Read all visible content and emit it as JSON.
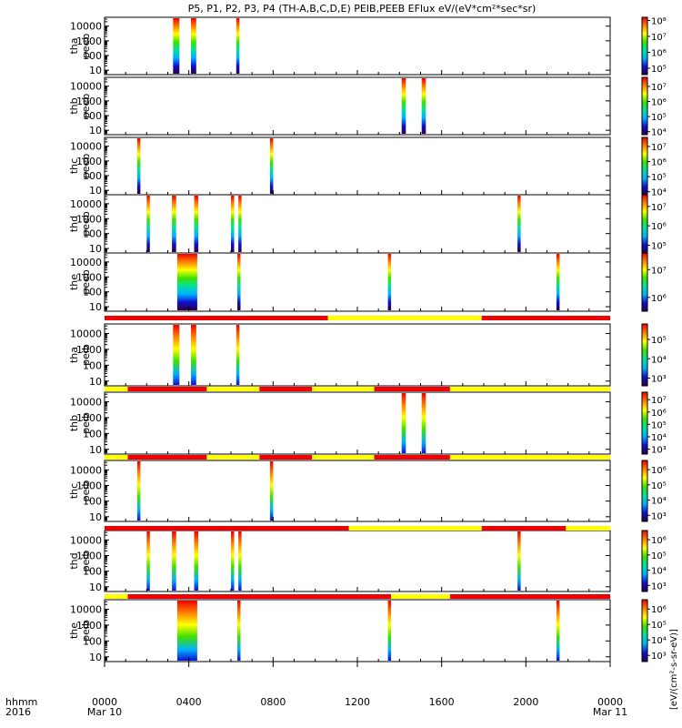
{
  "title": "P5, P1, P2, P3, P4 (TH-A,B,C,D,E) PEIB,PEEB EFlux eV/(eV*cm²*sec*sr)",
  "time_axis": {
    "row_label_1": "hhmm",
    "row_label_2": "2016",
    "ticks": [
      {
        "time": "0000",
        "date": "Mar 10",
        "hour": 0
      },
      {
        "time": "0400",
        "date": "",
        "hour": 4
      },
      {
        "time": "0800",
        "date": "",
        "hour": 8
      },
      {
        "time": "1200",
        "date": "",
        "hour": 12
      },
      {
        "time": "1600",
        "date": "",
        "hour": 16
      },
      {
        "time": "2000",
        "date": "",
        "hour": 20
      },
      {
        "time": "0000",
        "date": "Mar 11",
        "hour": 24
      }
    ]
  },
  "colorbar_label": "[eV/(cm²-s-sr-eV)]",
  "colors": {
    "bar_red": "#ee0000",
    "bar_yellow": "#ffff00",
    "colormap": [
      "#2a0040",
      "#1010d0",
      "#00b0ff",
      "#00e0a0",
      "#40e000",
      "#ffff00",
      "#ff8000",
      "#ee0000"
    ]
  },
  "chart_data": {
    "type": "heatmap",
    "x_unit": "hour of day, 2016 Mar 10 UT",
    "xlim": [
      0,
      24
    ],
    "y_scale": "log",
    "y_ticks": [
      "10",
      "100",
      "1000",
      "10000"
    ],
    "ylim": [
      5,
      40000
    ],
    "panels": [
      {
        "label1": "tha",
        "label2": "peeb",
        "cbar": {
          "labels": [
            "10⁵",
            "10⁶",
            "10⁷",
            "10⁸"
          ],
          "min": 4.6,
          "max": 8.2
        },
        "intervals": [
          [
            3.25,
            3.55
          ],
          [
            4.1,
            4.35
          ],
          [
            6.25,
            6.4
          ]
        ]
      },
      {
        "label1": "thb",
        "label2": "peeb",
        "cbar": {
          "labels": [
            "10⁴",
            "10⁵",
            "10⁶",
            "10⁷"
          ],
          "min": 3.8,
          "max": 7.6
        },
        "intervals": [
          [
            14.1,
            14.3
          ],
          [
            15.05,
            15.25
          ]
        ]
      },
      {
        "label1": "thc",
        "label2": "peeb",
        "cbar": {
          "labels": [
            "10⁴",
            "10⁵",
            "10⁶",
            "10⁷"
          ],
          "min": 3.8,
          "max": 7.6
        },
        "intervals": [
          [
            1.55,
            1.7
          ],
          [
            7.85,
            8.0
          ]
        ]
      },
      {
        "label1": "thd",
        "label2": "peeb",
        "cbar": {
          "labels": [
            "10⁵",
            "10⁶",
            "10⁷"
          ],
          "min": 4.6,
          "max": 7.6
        },
        "intervals": [
          [
            2.0,
            2.15
          ],
          [
            3.2,
            3.4
          ],
          [
            4.25,
            4.45
          ],
          [
            6.0,
            6.15
          ],
          [
            6.35,
            6.5
          ],
          [
            19.6,
            19.75
          ]
        ]
      },
      {
        "label1": "the",
        "label2": "peeb",
        "cbar": {
          "labels": [
            "10⁶",
            "10⁷"
          ],
          "min": 5.5,
          "max": 7.6
        },
        "intervals": [
          [
            3.45,
            4.4
          ],
          [
            6.3,
            6.45
          ],
          [
            13.45,
            13.6
          ],
          [
            21.45,
            21.6
          ]
        ]
      },
      {
        "label1": "tha",
        "label2": "peib",
        "cbar": {
          "labels": [
            "10³",
            "10⁴",
            "10⁵"
          ],
          "min": 2.6,
          "max": 5.8
        },
        "intervals": [
          [
            3.25,
            3.55
          ],
          [
            4.1,
            4.35
          ],
          [
            6.25,
            6.4
          ]
        ],
        "status_bar": [
          [
            "R",
            0,
            10.6
          ],
          [
            "Y",
            10.6,
            17.9
          ],
          [
            "R",
            17.9,
            24
          ]
        ]
      },
      {
        "label1": "thb",
        "label2": "peib",
        "cbar": {
          "labels": [
            "10³",
            "10⁴",
            "10⁵",
            "10⁶",
            "10⁷"
          ],
          "min": 2.6,
          "max": 7.6
        },
        "intervals": [
          [
            14.1,
            14.3
          ],
          [
            15.05,
            15.25
          ]
        ],
        "status_bar": [
          [
            "Y",
            0,
            1.1
          ],
          [
            "R",
            1.1,
            4.85
          ],
          [
            "Y",
            4.85,
            7.35
          ],
          [
            "R",
            7.35,
            9.85
          ],
          [
            "Y",
            9.85,
            12.8
          ],
          [
            "R",
            12.8,
            16.4
          ],
          [
            "Y",
            16.4,
            24
          ]
        ]
      },
      {
        "label1": "thc",
        "label2": "peib",
        "cbar": {
          "labels": [
            "10³",
            "10⁴",
            "10⁵",
            "10⁶"
          ],
          "min": 2.6,
          "max": 6.6
        },
        "intervals": [
          [
            1.55,
            1.7
          ],
          [
            7.85,
            8.0
          ]
        ],
        "status_bar": [
          [
            "Y",
            0,
            1.1
          ],
          [
            "R",
            1.1,
            4.85
          ],
          [
            "Y",
            4.85,
            7.35
          ],
          [
            "R",
            7.35,
            9.85
          ],
          [
            "Y",
            9.85,
            12.8
          ],
          [
            "R",
            12.8,
            16.4
          ],
          [
            "Y",
            16.4,
            24
          ]
        ]
      },
      {
        "label1": "thd",
        "label2": "peib",
        "cbar": {
          "labels": [
            "10³",
            "10⁴",
            "10⁵",
            "10⁶"
          ],
          "min": 2.6,
          "max": 6.6
        },
        "intervals": [
          [
            2.0,
            2.15
          ],
          [
            3.2,
            3.4
          ],
          [
            4.25,
            4.45
          ],
          [
            6.0,
            6.15
          ],
          [
            6.35,
            6.5
          ],
          [
            19.6,
            19.75
          ]
        ],
        "status_bar": [
          [
            "R",
            0,
            11.6
          ],
          [
            "Y",
            11.6,
            17.9
          ],
          [
            "R",
            17.9,
            21.9
          ],
          [
            "Y",
            21.9,
            24
          ]
        ]
      },
      {
        "label1": "the",
        "label2": "peib",
        "cbar": {
          "labels": [
            "10³",
            "10⁴",
            "10⁵",
            "10⁶"
          ],
          "min": 2.6,
          "max": 6.6
        },
        "intervals": [
          [
            3.45,
            4.4
          ],
          [
            6.3,
            6.45
          ],
          [
            13.45,
            13.6
          ],
          [
            21.45,
            21.6
          ]
        ],
        "status_bar": [
          [
            "Y",
            0,
            1.1
          ],
          [
            "R",
            1.1,
            13.6
          ],
          [
            "Y",
            13.6,
            16.4
          ],
          [
            "R",
            16.4,
            24
          ]
        ]
      }
    ]
  }
}
